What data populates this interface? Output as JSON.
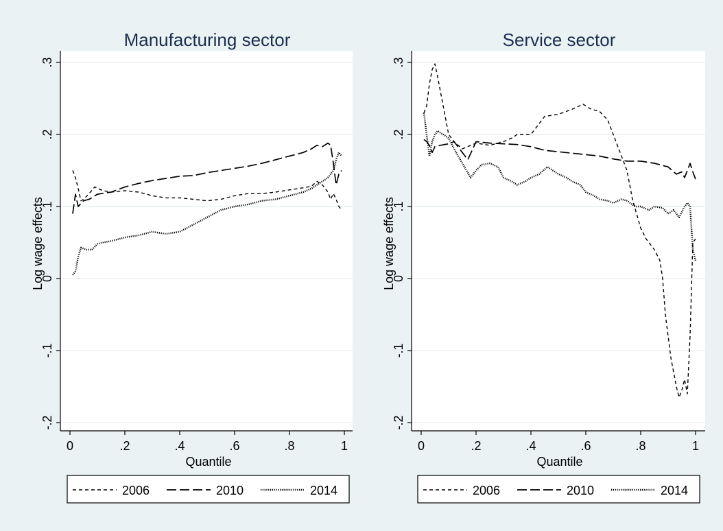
{
  "colors": {
    "outer_bg": "#eaf2f3",
    "plot_bg": "#ffffff",
    "title": "#1a2f4f",
    "axis": "#000000",
    "grid": "#e6eef0",
    "line": "#000000"
  },
  "chart_data": [
    {
      "type": "line",
      "title": "Manufacturing sector",
      "xlabel": "Quantile",
      "ylabel": "Log wage effects",
      "xlim": [
        0,
        1
      ],
      "ylim": [
        -0.2,
        0.3
      ],
      "xticks": [
        0,
        0.2,
        0.4,
        0.6,
        0.8,
        1
      ],
      "xtick_labels": [
        "0",
        ".2",
        ".4",
        ".6",
        ".8",
        "1"
      ],
      "yticks": [
        -0.2,
        -0.1,
        0,
        0.1,
        0.2,
        0.3
      ],
      "ytick_labels": [
        "-.2",
        "-.1",
        "0",
        ".1",
        ".2",
        ".3"
      ],
      "grid": true,
      "legend": "bottom",
      "series": [
        {
          "name": "2006",
          "dash": "short-dash",
          "x": [
            0.01,
            0.02,
            0.03,
            0.04,
            0.05,
            0.07,
            0.09,
            0.12,
            0.15,
            0.2,
            0.25,
            0.3,
            0.35,
            0.4,
            0.45,
            0.5,
            0.55,
            0.6,
            0.65,
            0.7,
            0.75,
            0.8,
            0.85,
            0.88,
            0.9,
            0.92,
            0.94,
            0.95,
            0.96,
            0.97,
            0.98,
            0.99
          ],
          "y": [
            0.15,
            0.14,
            0.125,
            0.108,
            0.11,
            0.118,
            0.127,
            0.122,
            0.12,
            0.122,
            0.12,
            0.115,
            0.112,
            0.112,
            0.11,
            0.108,
            0.11,
            0.115,
            0.118,
            0.118,
            0.12,
            0.123,
            0.126,
            0.128,
            0.135,
            0.13,
            0.12,
            0.11,
            0.118,
            0.11,
            0.1,
            0.095
          ]
        },
        {
          "name": "2010",
          "dash": "long-dash",
          "x": [
            0.01,
            0.02,
            0.03,
            0.05,
            0.07,
            0.1,
            0.15,
            0.2,
            0.25,
            0.3,
            0.35,
            0.4,
            0.45,
            0.5,
            0.55,
            0.6,
            0.65,
            0.7,
            0.75,
            0.8,
            0.85,
            0.88,
            0.9,
            0.92,
            0.94,
            0.95,
            0.96,
            0.97,
            0.98,
            0.99
          ],
          "y": [
            0.09,
            0.117,
            0.1,
            0.108,
            0.11,
            0.117,
            0.12,
            0.127,
            0.132,
            0.136,
            0.139,
            0.142,
            0.143,
            0.147,
            0.15,
            0.153,
            0.156,
            0.16,
            0.165,
            0.17,
            0.175,
            0.18,
            0.185,
            0.183,
            0.188,
            0.185,
            0.16,
            0.13,
            0.145,
            0.15
          ]
        },
        {
          "name": "2014",
          "dash": "dotted",
          "x": [
            0.01,
            0.02,
            0.03,
            0.04,
            0.06,
            0.08,
            0.1,
            0.12,
            0.15,
            0.2,
            0.25,
            0.3,
            0.35,
            0.4,
            0.45,
            0.5,
            0.55,
            0.6,
            0.65,
            0.7,
            0.75,
            0.8,
            0.85,
            0.88,
            0.9,
            0.92,
            0.94,
            0.96,
            0.97,
            0.98,
            0.99
          ],
          "y": [
            0.005,
            0.01,
            0.03,
            0.043,
            0.04,
            0.04,
            0.048,
            0.05,
            0.052,
            0.057,
            0.06,
            0.065,
            0.062,
            0.065,
            0.075,
            0.085,
            0.095,
            0.1,
            0.103,
            0.108,
            0.11,
            0.115,
            0.12,
            0.125,
            0.13,
            0.135,
            0.14,
            0.15,
            0.165,
            0.175,
            0.17
          ]
        }
      ]
    },
    {
      "type": "line",
      "title": "Service sector",
      "xlabel": "Quantile",
      "ylabel": "Log wage effects",
      "xlim": [
        0,
        1
      ],
      "ylim": [
        -0.2,
        0.3
      ],
      "xticks": [
        0,
        0.2,
        0.4,
        0.6,
        0.8,
        1
      ],
      "xtick_labels": [
        "0",
        ".2",
        ".4",
        ".6",
        ".8",
        "1"
      ],
      "yticks": [
        -0.2,
        -0.1,
        0,
        0.1,
        0.2,
        0.3
      ],
      "ytick_labels": [
        "-.2",
        "-.1",
        "0",
        ".1",
        ".2",
        ".3"
      ],
      "grid": true,
      "legend": "bottom",
      "series": [
        {
          "name": "2006",
          "dash": "short-dash",
          "x": [
            0.01,
            0.02,
            0.03,
            0.04,
            0.05,
            0.06,
            0.07,
            0.08,
            0.09,
            0.1,
            0.12,
            0.15,
            0.2,
            0.25,
            0.3,
            0.33,
            0.35,
            0.4,
            0.45,
            0.5,
            0.55,
            0.59,
            0.62,
            0.65,
            0.68,
            0.7,
            0.72,
            0.75,
            0.77,
            0.8,
            0.82,
            0.85,
            0.87,
            0.88,
            0.89,
            0.9,
            0.91,
            0.92,
            0.93,
            0.94,
            0.95,
            0.96,
            0.97,
            0.98,
            0.99,
            1.0
          ],
          "y": [
            0.23,
            0.24,
            0.27,
            0.29,
            0.298,
            0.28,
            0.26,
            0.24,
            0.22,
            0.2,
            0.19,
            0.18,
            0.188,
            0.185,
            0.19,
            0.195,
            0.2,
            0.2,
            0.225,
            0.228,
            0.235,
            0.242,
            0.235,
            0.232,
            0.22,
            0.2,
            0.18,
            0.15,
            0.11,
            0.07,
            0.055,
            0.04,
            0.025,
            0.0,
            -0.05,
            -0.08,
            -0.11,
            -0.13,
            -0.15,
            -0.165,
            -0.155,
            -0.14,
            -0.16,
            -0.08,
            0.05,
            0.055
          ]
        },
        {
          "name": "2010",
          "dash": "long-dash",
          "x": [
            0.01,
            0.02,
            0.03,
            0.04,
            0.05,
            0.07,
            0.1,
            0.12,
            0.15,
            0.17,
            0.2,
            0.25,
            0.3,
            0.35,
            0.4,
            0.45,
            0.5,
            0.55,
            0.6,
            0.65,
            0.7,
            0.75,
            0.8,
            0.85,
            0.9,
            0.93,
            0.95,
            0.96,
            0.97,
            0.98,
            0.99,
            1.0
          ],
          "y": [
            0.193,
            0.19,
            0.185,
            0.175,
            0.183,
            0.185,
            0.187,
            0.19,
            0.175,
            0.165,
            0.19,
            0.188,
            0.187,
            0.186,
            0.183,
            0.178,
            0.176,
            0.174,
            0.172,
            0.17,
            0.166,
            0.163,
            0.163,
            0.16,
            0.155,
            0.145,
            0.148,
            0.14,
            0.15,
            0.16,
            0.148,
            0.138
          ]
        },
        {
          "name": "2014",
          "dash": "dotted",
          "x": [
            0.01,
            0.02,
            0.03,
            0.04,
            0.05,
            0.06,
            0.08,
            0.1,
            0.12,
            0.15,
            0.18,
            0.2,
            0.22,
            0.25,
            0.28,
            0.3,
            0.33,
            0.35,
            0.38,
            0.4,
            0.43,
            0.46,
            0.5,
            0.53,
            0.55,
            0.58,
            0.6,
            0.63,
            0.65,
            0.68,
            0.7,
            0.73,
            0.75,
            0.78,
            0.8,
            0.83,
            0.85,
            0.88,
            0.9,
            0.92,
            0.94,
            0.96,
            0.97,
            0.98,
            0.99,
            1.0
          ],
          "y": [
            0.23,
            0.2,
            0.17,
            0.19,
            0.2,
            0.205,
            0.2,
            0.195,
            0.18,
            0.16,
            0.14,
            0.15,
            0.158,
            0.16,
            0.155,
            0.14,
            0.135,
            0.13,
            0.135,
            0.14,
            0.145,
            0.155,
            0.145,
            0.14,
            0.135,
            0.13,
            0.12,
            0.115,
            0.11,
            0.108,
            0.105,
            0.11,
            0.108,
            0.1,
            0.1,
            0.095,
            0.1,
            0.098,
            0.09,
            0.095,
            0.085,
            0.1,
            0.105,
            0.1,
            0.04,
            0.025
          ]
        }
      ]
    }
  ]
}
